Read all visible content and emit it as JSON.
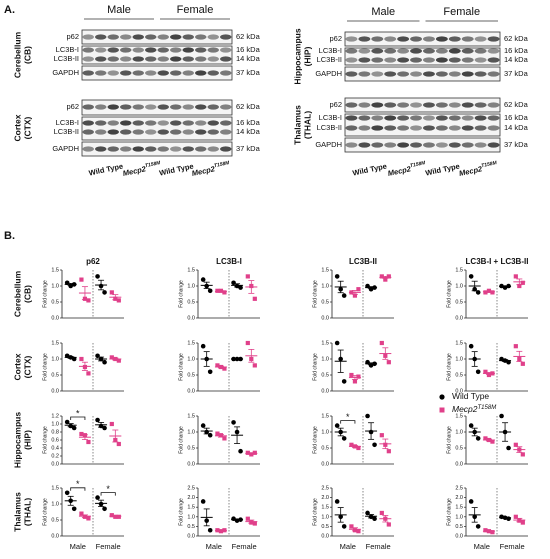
{
  "panel_a": {
    "label": "A.",
    "sex_labels": [
      "Male",
      "Female"
    ],
    "genotypes": {
      "wild_type": "Wild Type",
      "mutant": "Mecp2",
      "mutant_sup": "T158M"
    },
    "blots": [
      {
        "region": [
          "Cerebellum",
          "(CB)"
        ],
        "bands": [
          "p62",
          "LC3B-I",
          "LC3B-II",
          "GAPDH"
        ],
        "kda": [
          "62 kDa",
          "16 kDa",
          "14 kDa",
          "37 kDa"
        ]
      },
      {
        "region": [
          "Cortex",
          "(CTX)"
        ],
        "bands": [
          "p62",
          "LC3B-I",
          "LC3B-II",
          "GAPDH"
        ],
        "kda": [
          "62 kDa",
          "16 kDa",
          "14 kDa",
          "37 kDa"
        ]
      },
      {
        "region": [
          "Hippocampus",
          "(HIP)"
        ],
        "bands": [
          "p62",
          "LC3B-I",
          "LC3B-II",
          "GAPDH"
        ],
        "kda": [
          "62 kDa",
          "16 kDa",
          "14 kDa",
          "37 kDa"
        ]
      },
      {
        "region": [
          "Thalamus",
          "(THAL)"
        ],
        "bands": [
          "p62",
          "LC3B-I",
          "LC3B-II",
          "GAPDH"
        ],
        "kda": [
          "62 kDa",
          "16 kDa",
          "14 kDa",
          "37 kDa"
        ]
      }
    ]
  },
  "panel_b": {
    "label": "B.",
    "columns": [
      "p62",
      "LC3B-I",
      "LC3B-II",
      "LC3B-I + LC3B-II"
    ],
    "rows": [
      [
        "Cerebellum",
        "(CB)"
      ],
      [
        "Cortex",
        "(CTX)"
      ],
      [
        "Hippocampus",
        "(HIP)"
      ],
      [
        "Thalamus",
        "(THAL)"
      ]
    ],
    "legend": [
      {
        "name": "Wild Type",
        "color": "#000000"
      },
      {
        "name": "Mecp2",
        "name_sup": "T158M",
        "color": "#e0408a"
      }
    ]
  },
  "chart_data": [
    {
      "type": "scatter",
      "y_label": "Fold change",
      "ylim": [
        0,
        1.5
      ],
      "yticks": [
        {
          "value": 0,
          "label": "0.0"
        },
        {
          "value": 0.5,
          "label": "0.5"
        },
        {
          "value": 1,
          "label": "1.0"
        },
        {
          "value": 1.5,
          "label": "1.5"
        }
      ],
      "groups": [
        [
          1.1,
          1.0,
          1.05
        ],
        [
          1.2,
          0.6,
          0.55
        ],
        [
          1.3,
          1.0,
          0.8
        ],
        [
          0.8,
          0.6,
          0.55
        ]
      ],
      "means": [
        1.05,
        0.78,
        1.03,
        0.65
      ],
      "sems": [
        0.03,
        0.2,
        0.15,
        0.08
      ]
    },
    {
      "type": "scatter",
      "y_label": "Fold change",
      "ylim": [
        0,
        1.5
      ],
      "yticks": [
        {
          "value": 0,
          "label": "0.0"
        },
        {
          "value": 0.5,
          "label": "0.5"
        },
        {
          "value": 1,
          "label": "1.0"
        },
        {
          "value": 1.5,
          "label": "1.5"
        }
      ],
      "groups": [
        [
          1.2,
          1.0,
          0.85
        ],
        [
          0.85,
          0.85,
          0.8
        ],
        [
          1.1,
          1.0,
          0.95
        ],
        [
          1.3,
          1.0,
          0.6
        ]
      ],
      "means": [
        1.02,
        0.83,
        1.02,
        0.97
      ],
      "sems": [
        0.1,
        0.02,
        0.05,
        0.2
      ]
    },
    {
      "type": "scatter",
      "y_label": "Fold change",
      "ylim": [
        0,
        1.5
      ],
      "yticks": [
        {
          "value": 0,
          "label": "0.0"
        },
        {
          "value": 0.5,
          "label": "0.5"
        },
        {
          "value": 1,
          "label": "1.0"
        },
        {
          "value": 1.5,
          "label": "1.5"
        }
      ],
      "groups": [
        [
          1.3,
          0.9,
          0.7
        ],
        [
          0.8,
          0.7,
          0.9
        ],
        [
          1.0,
          0.9,
          0.95
        ],
        [
          1.3,
          1.2,
          1.3
        ]
      ],
      "means": [
        0.97,
        0.8,
        0.95,
        1.27
      ],
      "sems": [
        0.18,
        0.06,
        0.03,
        0.03
      ]
    },
    {
      "type": "scatter",
      "y_label": "Fold change",
      "ylim": [
        0,
        1.5
      ],
      "yticks": [
        {
          "value": 0,
          "label": "0.0"
        },
        {
          "value": 0.5,
          "label": "0.5"
        },
        {
          "value": 1,
          "label": "1.0"
        },
        {
          "value": 1.5,
          "label": "1.5"
        }
      ],
      "groups": [
        [
          1.3,
          0.9,
          0.8
        ],
        [
          0.8,
          0.85,
          0.8
        ],
        [
          1.0,
          0.95,
          1.0
        ],
        [
          1.3,
          1.0,
          1.1
        ]
      ],
      "means": [
        1.0,
        0.82,
        0.98,
        1.13
      ],
      "sems": [
        0.15,
        0.02,
        0.02,
        0.09
      ]
    },
    {
      "type": "scatter",
      "y_label": "Fold change",
      "ylim": [
        0,
        1.5
      ],
      "yticks": [
        {
          "value": 0,
          "label": "0.0"
        },
        {
          "value": 0.5,
          "label": "0.5"
        },
        {
          "value": 1,
          "label": "1.0"
        },
        {
          "value": 1.5,
          "label": "1.5"
        }
      ],
      "groups": [
        [
          1.1,
          1.05,
          1.0
        ],
        [
          1.0,
          0.75,
          0.55
        ],
        [
          1.1,
          1.0,
          0.9
        ],
        [
          1.05,
          1.0,
          0.95
        ]
      ],
      "means": [
        1.05,
        0.77,
        1.0,
        1.0
      ],
      "sems": [
        0.03,
        0.13,
        0.06,
        0.03
      ]
    },
    {
      "type": "scatter",
      "y_label": "Fold change",
      "ylim": [
        0,
        1.5
      ],
      "yticks": [
        {
          "value": 0,
          "label": "0.0"
        },
        {
          "value": 0.5,
          "label": "0.5"
        },
        {
          "value": 1,
          "label": "1.0"
        },
        {
          "value": 1.5,
          "label": "1.5"
        }
      ],
      "groups": [
        [
          1.4,
          1.0,
          0.6
        ],
        [
          0.8,
          0.75,
          0.7
        ],
        [
          1.0,
          1.0,
          1.0
        ],
        [
          1.5,
          1.0,
          0.8
        ]
      ],
      "means": [
        1.0,
        0.75,
        1.0,
        1.1
      ],
      "sems": [
        0.23,
        0.03,
        0.01,
        0.2
      ]
    },
    {
      "type": "scatter",
      "y_label": "Fold change",
      "ylim": [
        0,
        1.5
      ],
      "yticks": [
        {
          "value": 0,
          "label": "0.0"
        },
        {
          "value": 0.5,
          "label": "0.5"
        },
        {
          "value": 1,
          "label": "1.0"
        },
        {
          "value": 1.5,
          "label": "1.5"
        }
      ],
      "groups": [
        [
          1.5,
          1.0,
          0.3
        ],
        [
          0.5,
          0.3,
          0.45
        ],
        [
          0.9,
          0.8,
          0.85
        ],
        [
          1.5,
          1.1,
          0.9
        ]
      ],
      "means": [
        0.93,
        0.42,
        0.85,
        1.17
      ],
      "sems": [
        0.35,
        0.06,
        0.03,
        0.18
      ]
    },
    {
      "type": "scatter",
      "y_label": "Fold change",
      "ylim": [
        0,
        1.5
      ],
      "yticks": [
        {
          "value": 0,
          "label": "0.0"
        },
        {
          "value": 0.5,
          "label": "0.5"
        },
        {
          "value": 1,
          "label": "1.0"
        },
        {
          "value": 1.5,
          "label": "1.5"
        }
      ],
      "groups": [
        [
          1.4,
          1.0,
          0.6
        ],
        [
          0.6,
          0.5,
          0.55
        ],
        [
          1.0,
          0.95,
          0.9
        ],
        [
          1.4,
          1.0,
          0.85
        ]
      ],
      "means": [
        1.0,
        0.55,
        0.95,
        1.08
      ],
      "sems": [
        0.23,
        0.03,
        0.03,
        0.16
      ]
    },
    {
      "type": "scatter",
      "y_label": "Fold change",
      "ylim": [
        0,
        1.2
      ],
      "yticks": [
        {
          "value": 0,
          "label": "0.0"
        },
        {
          "value": 0.2,
          "label": "0.2"
        },
        {
          "value": 0.4,
          "label": "0.4"
        },
        {
          "value": 0.6,
          "label": "0.6"
        },
        {
          "value": 0.8,
          "label": "0.8"
        },
        {
          "value": 1,
          "label": "1.0"
        },
        {
          "value": 1.2,
          "label": "1.2"
        }
      ],
      "groups": [
        [
          1.05,
          0.95,
          0.9
        ],
        [
          0.75,
          0.72,
          0.55
        ],
        [
          1.1,
          0.95,
          0.9
        ],
        [
          1.0,
          0.6,
          0.5
        ]
      ],
      "means": [
        0.97,
        0.67,
        0.98,
        0.7
      ],
      "sems": [
        0.04,
        0.06,
        0.06,
        0.15
      ],
      "sig_labels": [
        "*",
        null
      ]
    },
    {
      "type": "scatter",
      "y_label": "Fold change",
      "ylim": [
        0,
        1.5
      ],
      "yticks": [
        {
          "value": 0,
          "label": "0.0"
        },
        {
          "value": 0.5,
          "label": "0.5"
        },
        {
          "value": 1,
          "label": "1.0"
        },
        {
          "value": 1.5,
          "label": "1.5"
        }
      ],
      "groups": [
        [
          1.2,
          1.0,
          0.9
        ],
        [
          0.95,
          0.9,
          0.8
        ],
        [
          1.3,
          1.0,
          0.4
        ],
        [
          0.35,
          0.3,
          0.35
        ]
      ],
      "means": [
        1.03,
        0.88,
        0.9,
        0.33
      ],
      "sems": [
        0.09,
        0.04,
        0.26,
        0.02
      ]
    },
    {
      "type": "scatter",
      "y_label": "Fold change",
      "ylim": [
        0,
        1.5
      ],
      "yticks": [
        {
          "value": 0,
          "label": "0.0"
        },
        {
          "value": 0.5,
          "label": "0.5"
        },
        {
          "value": 1,
          "label": "1.0"
        },
        {
          "value": 1.5,
          "label": "1.5"
        }
      ],
      "groups": [
        [
          1.2,
          1.0,
          0.8
        ],
        [
          0.6,
          0.55,
          0.5
        ],
        [
          1.5,
          1.0,
          0.6
        ],
        [
          0.9,
          0.6,
          0.4
        ]
      ],
      "means": [
        1.0,
        0.55,
        1.03,
        0.63
      ],
      "sems": [
        0.12,
        0.03,
        0.26,
        0.15
      ],
      "sig_labels": [
        "*",
        null
      ]
    },
    {
      "type": "scatter",
      "y_label": "Fold change",
      "ylim": [
        0,
        1.5
      ],
      "yticks": [
        {
          "value": 0,
          "label": "0.0"
        },
        {
          "value": 0.5,
          "label": "0.5"
        },
        {
          "value": 1,
          "label": "1.0"
        },
        {
          "value": 1.5,
          "label": "1.5"
        }
      ],
      "groups": [
        [
          1.2,
          1.0,
          0.8
        ],
        [
          0.8,
          0.75,
          0.7
        ],
        [
          1.5,
          1.0,
          0.5
        ],
        [
          0.6,
          0.45,
          0.3
        ]
      ],
      "means": [
        1.0,
        0.75,
        1.0,
        0.45
      ],
      "sems": [
        0.12,
        0.03,
        0.29,
        0.09
      ]
    },
    {
      "type": "scatter",
      "y_label": "Fold change",
      "ylim": [
        0,
        1.5
      ],
      "yticks": [
        {
          "value": 0,
          "label": "0.0"
        },
        {
          "value": 0.5,
          "label": "0.5"
        },
        {
          "value": 1,
          "label": "1.0"
        },
        {
          "value": 1.5,
          "label": "1.5"
        }
      ],
      "categories": [
        "Male",
        "Female"
      ],
      "groups": [
        [
          1.35,
          1.1,
          0.85
        ],
        [
          0.7,
          0.6,
          0.55
        ],
        [
          1.2,
          1.0,
          0.85
        ],
        [
          0.65,
          0.6,
          0.6
        ]
      ],
      "means": [
        1.1,
        0.62,
        1.02,
        0.62
      ],
      "sems": [
        0.14,
        0.04,
        0.1,
        0.02
      ],
      "sig_labels": [
        "*",
        "*"
      ]
    },
    {
      "type": "scatter",
      "y_label": "Fold change",
      "ylim": [
        0,
        2.5
      ],
      "yticks": [
        {
          "value": 0,
          "label": "0.0"
        },
        {
          "value": 0.5,
          "label": "0.5"
        },
        {
          "value": 1,
          "label": "1.0"
        },
        {
          "value": 1.5,
          "label": "1.5"
        },
        {
          "value": 2,
          "label": "2.0"
        },
        {
          "value": 2.5,
          "label": "2.5"
        }
      ],
      "categories": [
        "Male",
        "Female"
      ],
      "groups": [
        [
          1.8,
          0.8,
          0.3
        ],
        [
          0.3,
          0.25,
          0.3
        ],
        [
          0.9,
          0.8,
          0.85
        ],
        [
          0.9,
          0.7,
          0.65
        ]
      ],
      "means": [
        0.97,
        0.28,
        0.85,
        0.75
      ],
      "sems": [
        0.44,
        0.02,
        0.03,
        0.08
      ]
    },
    {
      "type": "scatter",
      "y_label": "Fold change",
      "ylim": [
        0,
        2.5
      ],
      "yticks": [
        {
          "value": 0,
          "label": "0.0"
        },
        {
          "value": 0.5,
          "label": "0.5"
        },
        {
          "value": 1,
          "label": "1.0"
        },
        {
          "value": 1.5,
          "label": "1.5"
        },
        {
          "value": 2,
          "label": "2.0"
        },
        {
          "value": 2.5,
          "label": "2.5"
        }
      ],
      "categories": [
        "Male",
        "Female"
      ],
      "groups": [
        [
          1.8,
          1.0,
          0.5
        ],
        [
          0.5,
          0.3,
          0.25
        ],
        [
          1.2,
          1.0,
          0.9
        ],
        [
          1.2,
          0.9,
          0.6
        ]
      ],
      "means": [
        1.1,
        0.35,
        1.03,
        0.9
      ],
      "sems": [
        0.38,
        0.08,
        0.09,
        0.17
      ]
    },
    {
      "type": "scatter",
      "y_label": "Fold change",
      "ylim": [
        0,
        2.5
      ],
      "yticks": [
        {
          "value": 0,
          "label": "0.0"
        },
        {
          "value": 0.5,
          "label": "0.5"
        },
        {
          "value": 1,
          "label": "1.0"
        },
        {
          "value": 1.5,
          "label": "1.5"
        },
        {
          "value": 2,
          "label": "2.0"
        },
        {
          "value": 2.5,
          "label": "2.5"
        }
      ],
      "categories": [
        "Male",
        "Female"
      ],
      "groups": [
        [
          1.8,
          1.0,
          0.5
        ],
        [
          0.3,
          0.25,
          0.2
        ],
        [
          1.0,
          0.95,
          0.9
        ],
        [
          1.0,
          0.8,
          0.7
        ]
      ],
      "means": [
        1.1,
        0.25,
        0.95,
        0.83
      ],
      "sems": [
        0.38,
        0.03,
        0.03,
        0.09
      ]
    }
  ]
}
